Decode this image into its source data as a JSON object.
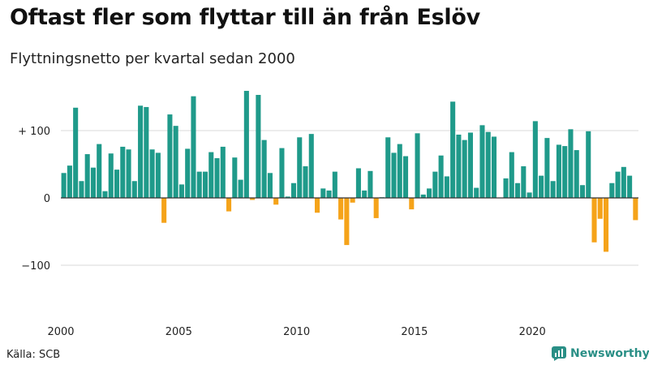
{
  "header": {
    "title": "Oftast fler som flyttar till än från Eslöv",
    "subtitle": "Flyttningsnetto per kvartal sedan 2000"
  },
  "footer": {
    "source": "Källa: SCB",
    "brand": "Newsworthy"
  },
  "colors": {
    "positive": "#1f9a8a",
    "negative": "#f5a31a",
    "grid": "#d9d9d9",
    "zero": "#333333",
    "brand": "#2a8f86"
  },
  "chart_data": {
    "type": "bar",
    "x_ticks": [
      {
        "label": "2000",
        "year": 2000
      },
      {
        "label": "2005",
        "year": 2005
      },
      {
        "label": "2010",
        "year": 2010
      },
      {
        "label": "2015",
        "year": 2015
      },
      {
        "label": "2020",
        "year": 2020
      }
    ],
    "y_ticks": [
      {
        "label": "+ 100",
        "value": 100
      },
      {
        "label": "0",
        "value": 0
      },
      {
        "label": "−100",
        "value": -100
      }
    ],
    "ylim": [
      -140,
      150
    ],
    "start_year": 2000,
    "series": [
      {
        "values": [
          37,
          48,
          134,
          25,
          65,
          45,
          80,
          10,
          66,
          42,
          76,
          72,
          25,
          137,
          135,
          72,
          67,
          -37,
          124,
          107,
          20,
          73,
          151,
          39,
          39,
          68,
          59,
          76,
          -20,
          60,
          27,
          159,
          -3,
          153,
          86,
          37,
          -10,
          74,
          2,
          22,
          90,
          47,
          95,
          -22,
          14,
          11,
          39,
          -32,
          -70,
          -7,
          44,
          11,
          40,
          -30,
          1,
          90,
          67,
          80,
          62,
          -17,
          96,
          5,
          14,
          39,
          63,
          32,
          143,
          94,
          86,
          97,
          15,
          108,
          98,
          91,
          0,
          29,
          68,
          22,
          47,
          8,
          114,
          33,
          89,
          25,
          79,
          77,
          102,
          71,
          19,
          99,
          -66,
          -31,
          -80,
          22,
          39,
          46,
          33,
          -33
        ]
      }
    ]
  }
}
